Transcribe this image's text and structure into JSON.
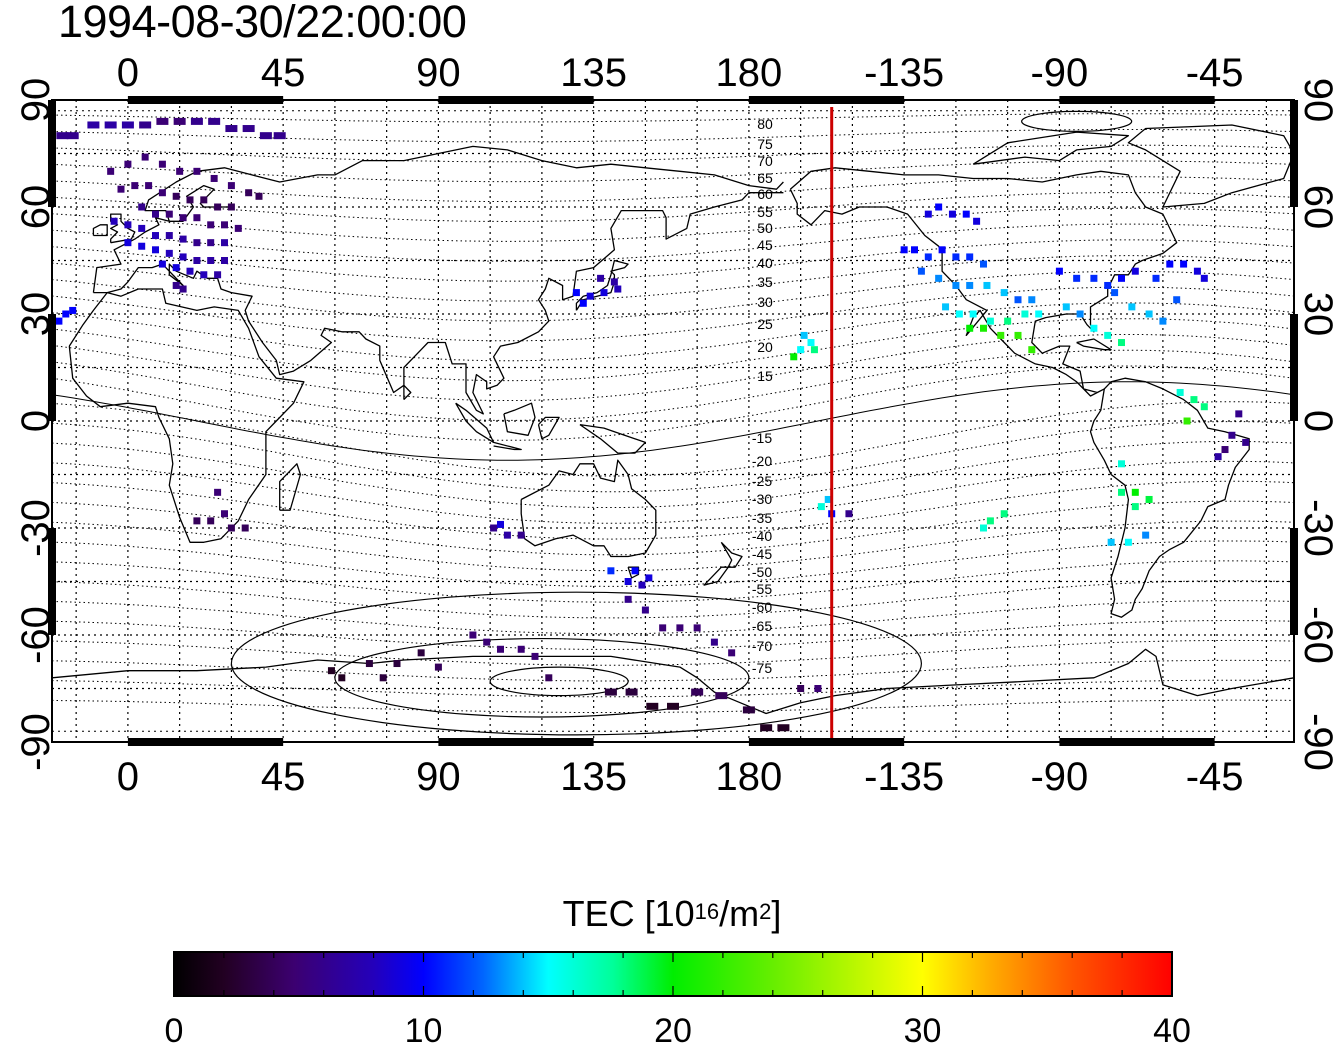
{
  "title": "1994-08-30/22:00:00",
  "map": {
    "top_lon_labels": [
      "0",
      "45",
      "90",
      "135",
      "180",
      "-135",
      "-90",
      "-45"
    ],
    "bottom_lon_labels": [
      "0",
      "45",
      "90",
      "135",
      "180",
      "-135",
      "-90",
      "-45"
    ],
    "left_lat_labels": [
      "90",
      "60",
      "30",
      "0",
      "-30",
      "-60",
      "-90"
    ],
    "right_lat_labels": [
      "90",
      "60",
      "30",
      "0",
      "-30",
      "-60",
      "-90"
    ],
    "lon_range": [
      -22,
      338
    ],
    "lat_range": [
      -90,
      90
    ],
    "grid": true,
    "terminator_lon": 204,
    "terminator_color": "#cc0000",
    "contour_labels_east": [
      "80",
      "75",
      "70",
      "65",
      "60",
      "55",
      "50",
      "45",
      "40",
      "35",
      "30",
      "25",
      "20",
      "15"
    ],
    "contour_labels_west": [
      "-15",
      "-20",
      "-25",
      "-30",
      "-35",
      "-40",
      "-45",
      "-50",
      "-55",
      "-60",
      "-65",
      "-70",
      "-75"
    ]
  },
  "colorbar": {
    "title": "TEC  [10",
    "title_sup1": "16",
    "title_mid": "/m",
    "title_sup2": "2",
    "title_end": "]",
    "ticks": [
      "0",
      "10",
      "20",
      "30",
      "40"
    ],
    "range": [
      0,
      40
    ]
  },
  "tec_points": [
    [
      -19,
      80,
      6
    ],
    [
      -16,
      80,
      6
    ],
    [
      -10,
      83,
      7
    ],
    [
      -5,
      83,
      7
    ],
    [
      0,
      83,
      7
    ],
    [
      5,
      83,
      6
    ],
    [
      10,
      84,
      5
    ],
    [
      15,
      84,
      5
    ],
    [
      20,
      84,
      6
    ],
    [
      25,
      84,
      6
    ],
    [
      30,
      82,
      6
    ],
    [
      35,
      82,
      6
    ],
    [
      40,
      80,
      6
    ],
    [
      44,
      80,
      6
    ],
    [
      -5,
      70,
      5
    ],
    [
      0,
      72,
      5
    ],
    [
      5,
      74,
      5
    ],
    [
      10,
      72,
      5
    ],
    [
      15,
      70,
      5
    ],
    [
      20,
      70,
      5
    ],
    [
      25,
      68,
      5
    ],
    [
      30,
      66,
      5
    ],
    [
      35,
      64,
      4
    ],
    [
      38,
      63,
      4
    ],
    [
      -2,
      65,
      5
    ],
    [
      2,
      66,
      5
    ],
    [
      6,
      66,
      5
    ],
    [
      10,
      64,
      5
    ],
    [
      14,
      63,
      4
    ],
    [
      18,
      62,
      4
    ],
    [
      22,
      62,
      4
    ],
    [
      26,
      60,
      4
    ],
    [
      30,
      60,
      4
    ],
    [
      4,
      60,
      6
    ],
    [
      8,
      58,
      6
    ],
    [
      12,
      58,
      5
    ],
    [
      16,
      57,
      5
    ],
    [
      20,
      57,
      5
    ],
    [
      24,
      55,
      5
    ],
    [
      28,
      55,
      5
    ],
    [
      32,
      54,
      5
    ],
    [
      -4,
      56,
      8
    ],
    [
      0,
      55,
      8
    ],
    [
      4,
      54,
      8
    ],
    [
      8,
      52,
      8
    ],
    [
      12,
      52,
      7
    ],
    [
      16,
      51,
      7
    ],
    [
      20,
      50,
      6
    ],
    [
      24,
      50,
      6
    ],
    [
      28,
      50,
      7
    ],
    [
      0,
      50,
      9
    ],
    [
      4,
      49,
      9
    ],
    [
      8,
      48,
      9
    ],
    [
      12,
      47,
      8
    ],
    [
      16,
      46,
      8
    ],
    [
      20,
      45,
      7
    ],
    [
      24,
      45,
      7
    ],
    [
      28,
      45,
      7
    ],
    [
      10,
      44,
      9
    ],
    [
      14,
      43,
      9
    ],
    [
      18,
      42,
      8
    ],
    [
      22,
      41,
      8
    ],
    [
      26,
      41,
      7
    ],
    [
      -20,
      28,
      10
    ],
    [
      -18,
      30,
      10
    ],
    [
      -16,
      31,
      10
    ],
    [
      14,
      38,
      6
    ],
    [
      16,
      37,
      6
    ],
    [
      26,
      -20,
      5
    ],
    [
      28,
      -26,
      5
    ],
    [
      24,
      -28,
      4
    ],
    [
      20,
      -28,
      4
    ],
    [
      30,
      -30,
      4
    ],
    [
      34,
      -30,
      4
    ],
    [
      106,
      -30,
      6
    ],
    [
      110,
      -32,
      7
    ],
    [
      114,
      -32,
      6
    ],
    [
      108,
      -29,
      9
    ],
    [
      130,
      36,
      10
    ],
    [
      134,
      35,
      9
    ],
    [
      138,
      36,
      9
    ],
    [
      142,
      37,
      8
    ],
    [
      137,
      40,
      7
    ],
    [
      141,
      39,
      7
    ],
    [
      132,
      33,
      10
    ],
    [
      140,
      -42,
      11
    ],
    [
      145,
      -45,
      9
    ],
    [
      149,
      -46,
      8
    ],
    [
      147,
      -42,
      10
    ],
    [
      151,
      -44,
      9
    ],
    [
      145,
      -50,
      6
    ],
    [
      150,
      -53,
      6
    ],
    [
      155,
      -58,
      5
    ],
    [
      160,
      -58,
      5
    ],
    [
      165,
      -58,
      5
    ],
    [
      170,
      -62,
      6
    ],
    [
      175,
      -65,
      5
    ],
    [
      59,
      -70,
      2
    ],
    [
      62,
      -72,
      2
    ],
    [
      70,
      -68,
      3
    ],
    [
      74,
      -72,
      3
    ],
    [
      78,
      -68,
      3
    ],
    [
      85,
      -65,
      3
    ],
    [
      90,
      -69,
      4
    ],
    [
      100,
      -60,
      5
    ],
    [
      104,
      -62,
      5
    ],
    [
      108,
      -64,
      5
    ],
    [
      114,
      -64,
      5
    ],
    [
      118,
      -66,
      5
    ],
    [
      122,
      -72,
      4
    ],
    [
      140,
      -76,
      3
    ],
    [
      146,
      -76,
      3
    ],
    [
      152,
      -80,
      2
    ],
    [
      158,
      -80,
      2
    ],
    [
      165,
      -76,
      4
    ],
    [
      172,
      -77,
      4
    ],
    [
      180,
      -81,
      3
    ],
    [
      185,
      -86,
      2
    ],
    [
      190,
      -86,
      2
    ],
    [
      200,
      -75,
      5
    ],
    [
      195,
      -75,
      4
    ],
    [
      195,
      20,
      15
    ],
    [
      198,
      22,
      15
    ],
    [
      196,
      24,
      14
    ],
    [
      193,
      18,
      20
    ],
    [
      199,
      20,
      18
    ],
    [
      203,
      -22,
      14
    ],
    [
      201,
      -24,
      16
    ],
    [
      204,
      -26,
      10
    ],
    [
      209,
      -26,
      6
    ],
    [
      232,
      58,
      9
    ],
    [
      235,
      60,
      10
    ],
    [
      239,
      58,
      9
    ],
    [
      243,
      58,
      10
    ],
    [
      246,
      56,
      9
    ],
    [
      225,
      48,
      10
    ],
    [
      228,
      48,
      10
    ],
    [
      232,
      46,
      11
    ],
    [
      236,
      48,
      10
    ],
    [
      240,
      46,
      11
    ],
    [
      244,
      46,
      11
    ],
    [
      248,
      44,
      12
    ],
    [
      230,
      42,
      12
    ],
    [
      235,
      40,
      13
    ],
    [
      240,
      38,
      13
    ],
    [
      244,
      38,
      13
    ],
    [
      249,
      38,
      14
    ],
    [
      254,
      36,
      14
    ],
    [
      258,
      34,
      12
    ],
    [
      262,
      34,
      13
    ],
    [
      237,
      32,
      14
    ],
    [
      241,
      30,
      15
    ],
    [
      245,
      30,
      15
    ],
    [
      250,
      28,
      16
    ],
    [
      255,
      28,
      18
    ],
    [
      260,
      30,
      16
    ],
    [
      264,
      30,
      15
    ],
    [
      244,
      26,
      20
    ],
    [
      248,
      26,
      21
    ],
    [
      253,
      24,
      22
    ],
    [
      258,
      24,
      22
    ],
    [
      262,
      20,
      22
    ],
    [
      270,
      42,
      10
    ],
    [
      275,
      40,
      11
    ],
    [
      280,
      40,
      11
    ],
    [
      284,
      38,
      11
    ],
    [
      288,
      40,
      10
    ],
    [
      292,
      42,
      9
    ],
    [
      272,
      32,
      14
    ],
    [
      276,
      30,
      13
    ],
    [
      280,
      26,
      15
    ],
    [
      284,
      24,
      16
    ],
    [
      288,
      22,
      18
    ],
    [
      286,
      36,
      12
    ],
    [
      291,
      32,
      14
    ],
    [
      296,
      30,
      14
    ],
    [
      300,
      28,
      13
    ],
    [
      304,
      34,
      12
    ],
    [
      298,
      40,
      11
    ],
    [
      302,
      44,
      10
    ],
    [
      306,
      44,
      10
    ],
    [
      310,
      42,
      9
    ],
    [
      312,
      40,
      9
    ],
    [
      305,
      8,
      16
    ],
    [
      309,
      6,
      18
    ],
    [
      307,
      0,
      22
    ],
    [
      312,
      4,
      18
    ],
    [
      322,
      2,
      6
    ],
    [
      320,
      -4,
      6
    ],
    [
      318,
      -8,
      5
    ],
    [
      316,
      -10,
      7
    ],
    [
      324,
      -6,
      6
    ],
    [
      288,
      -12,
      16
    ],
    [
      288,
      -20,
      18
    ],
    [
      292,
      -20,
      20
    ],
    [
      296,
      -22,
      19
    ],
    [
      292,
      -24,
      18
    ],
    [
      250,
      -28,
      18
    ],
    [
      254,
      -26,
      18
    ],
    [
      248,
      -30,
      16
    ],
    [
      285,
      -34,
      14
    ],
    [
      290,
      -34,
      15
    ],
    [
      295,
      -32,
      13
    ]
  ]
}
